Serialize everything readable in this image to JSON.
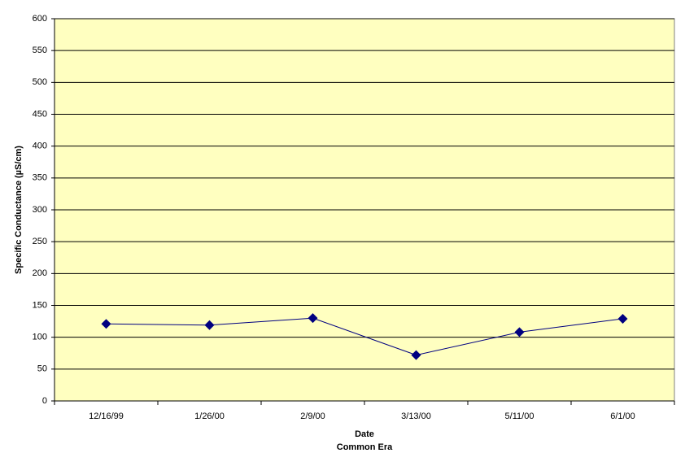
{
  "chart_data": {
    "type": "line",
    "x_label": "Date",
    "x_sublabel": "Common Era",
    "y_label": "Specific Conductance (µS/cm)",
    "categories": [
      "12/16/99",
      "1/26/00",
      "2/9/00",
      "3/13/00",
      "5/11/00",
      "6/1/00"
    ],
    "series": [
      {
        "name": "Specific Conductance",
        "color": "#000080",
        "values": [
          121,
          119,
          130,
          72,
          108,
          129
        ]
      }
    ],
    "ylim": [
      0,
      600
    ],
    "yticks": [
      0,
      50,
      100,
      150,
      200,
      250,
      300,
      350,
      400,
      450,
      500,
      550,
      600
    ],
    "grid": true,
    "plot_background": "#ffffc0"
  }
}
